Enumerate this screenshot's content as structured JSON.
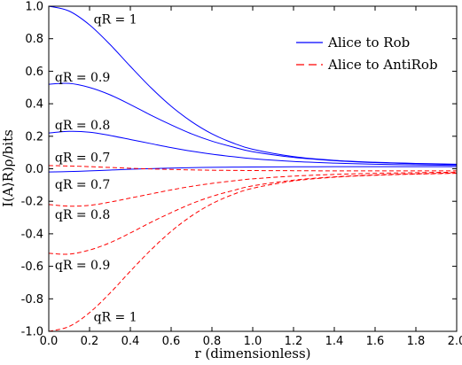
{
  "chart_data": {
    "type": "line",
    "xlabel": "r (dimensionless)",
    "ylabel": "I(A⟩R)ρ/bits",
    "xlim": [
      0,
      2
    ],
    "ylim": [
      -1,
      1
    ],
    "x_ticks": [
      "0.0",
      "0.2",
      "0.4",
      "0.6",
      "0.8",
      "1.0",
      "1.2",
      "1.4",
      "1.6",
      "1.8",
      "2.0"
    ],
    "y_ticks": [
      "1.0",
      "0.8",
      "0.6",
      "0.4",
      "0.2",
      "0.0",
      "-0.2",
      "-0.4",
      "-0.6",
      "-0.8",
      "-1.0"
    ],
    "grid": false,
    "legend_position": "top-right",
    "legend": [
      {
        "label": "Alice to Rob",
        "color": "#0000ff",
        "style": "solid"
      },
      {
        "label": "Alice to AntiRob",
        "color": "#ff0000",
        "style": "dashed"
      }
    ],
    "series": [
      {
        "group": "Alice to Rob",
        "annotation": "qR = 1",
        "color": "#0000ff",
        "style": "solid",
        "points": [
          [
            0,
            1.0
          ],
          [
            0.1,
            0.97
          ],
          [
            0.2,
            0.885
          ],
          [
            0.3,
            0.765
          ],
          [
            0.4,
            0.63
          ],
          [
            0.5,
            0.5
          ],
          [
            0.6,
            0.385
          ],
          [
            0.7,
            0.29
          ],
          [
            0.8,
            0.215
          ],
          [
            0.9,
            0.16
          ],
          [
            1.0,
            0.12
          ],
          [
            1.2,
            0.075
          ],
          [
            1.4,
            0.052
          ],
          [
            1.6,
            0.04
          ],
          [
            1.8,
            0.033
          ],
          [
            2.0,
            0.028
          ]
        ]
      },
      {
        "group": "Alice to Rob",
        "annotation": "qR = 0.9",
        "color": "#0000ff",
        "style": "solid",
        "points": [
          [
            0,
            0.52
          ],
          [
            0.1,
            0.525
          ],
          [
            0.2,
            0.5
          ],
          [
            0.3,
            0.455
          ],
          [
            0.4,
            0.395
          ],
          [
            0.5,
            0.33
          ],
          [
            0.6,
            0.27
          ],
          [
            0.7,
            0.215
          ],
          [
            0.8,
            0.17
          ],
          [
            0.9,
            0.135
          ],
          [
            1.0,
            0.105
          ],
          [
            1.2,
            0.07
          ],
          [
            1.4,
            0.05
          ],
          [
            1.6,
            0.038
          ],
          [
            1.8,
            0.031
          ],
          [
            2.0,
            0.026
          ]
        ]
      },
      {
        "group": "Alice to Rob",
        "annotation": "qR = 0.8",
        "color": "#0000ff",
        "style": "solid",
        "points": [
          [
            0,
            0.22
          ],
          [
            0.1,
            0.23
          ],
          [
            0.2,
            0.225
          ],
          [
            0.3,
            0.205
          ],
          [
            0.4,
            0.18
          ],
          [
            0.5,
            0.155
          ],
          [
            0.6,
            0.13
          ],
          [
            0.7,
            0.108
          ],
          [
            0.8,
            0.09
          ],
          [
            0.9,
            0.075
          ],
          [
            1.0,
            0.062
          ],
          [
            1.2,
            0.045
          ],
          [
            1.4,
            0.035
          ],
          [
            1.6,
            0.028
          ],
          [
            1.8,
            0.024
          ],
          [
            2.0,
            0.021
          ]
        ]
      },
      {
        "group": "Alice to Rob",
        "annotation": "qR = 0.7",
        "color": "#0000ff",
        "style": "solid",
        "points": [
          [
            0,
            -0.02
          ],
          [
            0.1,
            -0.017
          ],
          [
            0.2,
            -0.013
          ],
          [
            0.3,
            -0.008
          ],
          [
            0.4,
            -0.003
          ],
          [
            0.5,
            0.001
          ],
          [
            0.6,
            0.004
          ],
          [
            0.7,
            0.007
          ],
          [
            0.8,
            0.009
          ],
          [
            0.9,
            0.01
          ],
          [
            1.0,
            0.011
          ],
          [
            1.2,
            0.012
          ],
          [
            1.4,
            0.013
          ],
          [
            1.6,
            0.013
          ],
          [
            1.8,
            0.013
          ],
          [
            2.0,
            0.013
          ]
        ]
      },
      {
        "group": "Alice to AntiRob",
        "annotation": "qR = 0.7",
        "color": "#ff0000",
        "style": "dashed",
        "points": [
          [
            0,
            0.02
          ],
          [
            0.1,
            0.017
          ],
          [
            0.2,
            0.013
          ],
          [
            0.3,
            0.008
          ],
          [
            0.4,
            0.003
          ],
          [
            0.5,
            -0.001
          ],
          [
            0.6,
            -0.004
          ],
          [
            0.7,
            -0.007
          ],
          [
            0.8,
            -0.009
          ],
          [
            0.9,
            -0.01
          ],
          [
            1.0,
            -0.011
          ],
          [
            1.2,
            -0.012
          ],
          [
            1.4,
            -0.013
          ],
          [
            1.6,
            -0.013
          ],
          [
            1.8,
            -0.013
          ],
          [
            2.0,
            -0.013
          ]
        ]
      },
      {
        "group": "Alice to AntiRob",
        "annotation": "qR = 0.8",
        "color": "#ff0000",
        "style": "dashed",
        "points": [
          [
            0,
            -0.22
          ],
          [
            0.1,
            -0.23
          ],
          [
            0.2,
            -0.225
          ],
          [
            0.3,
            -0.205
          ],
          [
            0.4,
            -0.18
          ],
          [
            0.5,
            -0.155
          ],
          [
            0.6,
            -0.13
          ],
          [
            0.7,
            -0.108
          ],
          [
            0.8,
            -0.09
          ],
          [
            0.9,
            -0.075
          ],
          [
            1.0,
            -0.062
          ],
          [
            1.2,
            -0.045
          ],
          [
            1.4,
            -0.035
          ],
          [
            1.6,
            -0.028
          ],
          [
            1.8,
            -0.024
          ],
          [
            2.0,
            -0.021
          ]
        ]
      },
      {
        "group": "Alice to AntiRob",
        "annotation": "qR = 0.9",
        "color": "#ff0000",
        "style": "dashed",
        "points": [
          [
            0,
            -0.52
          ],
          [
            0.1,
            -0.525
          ],
          [
            0.2,
            -0.5
          ],
          [
            0.3,
            -0.455
          ],
          [
            0.4,
            -0.395
          ],
          [
            0.5,
            -0.33
          ],
          [
            0.6,
            -0.27
          ],
          [
            0.7,
            -0.215
          ],
          [
            0.8,
            -0.17
          ],
          [
            0.9,
            -0.135
          ],
          [
            1.0,
            -0.105
          ],
          [
            1.2,
            -0.07
          ],
          [
            1.4,
            -0.05
          ],
          [
            1.6,
            -0.038
          ],
          [
            1.8,
            -0.031
          ],
          [
            2.0,
            -0.026
          ]
        ]
      },
      {
        "group": "Alice to AntiRob",
        "annotation": "qR = 1",
        "color": "#ff0000",
        "style": "dashed",
        "points": [
          [
            0,
            -1.0
          ],
          [
            0.1,
            -0.97
          ],
          [
            0.2,
            -0.885
          ],
          [
            0.3,
            -0.765
          ],
          [
            0.4,
            -0.63
          ],
          [
            0.5,
            -0.5
          ],
          [
            0.6,
            -0.385
          ],
          [
            0.7,
            -0.29
          ],
          [
            0.8,
            -0.215
          ],
          [
            0.9,
            -0.16
          ],
          [
            1.0,
            -0.12
          ],
          [
            1.2,
            -0.075
          ],
          [
            1.4,
            -0.052
          ],
          [
            1.6,
            -0.04
          ],
          [
            1.8,
            -0.033
          ],
          [
            2.0,
            -0.028
          ]
        ]
      }
    ],
    "annotations": [
      {
        "text": "qR = 1",
        "x": 0.22,
        "y": 0.92
      },
      {
        "text": "qR = 0.9",
        "x": 0.03,
        "y": 0.565
      },
      {
        "text": "qR = 0.8",
        "x": 0.03,
        "y": 0.27
      },
      {
        "text": "qR = 0.7",
        "x": 0.03,
        "y": 0.07
      },
      {
        "text": "qR = 0.7",
        "x": 0.03,
        "y": -0.095
      },
      {
        "text": "qR = 0.8",
        "x": 0.03,
        "y": -0.28
      },
      {
        "text": "qR = 0.9",
        "x": 0.03,
        "y": -0.59
      },
      {
        "text": "qR = 1",
        "x": 0.22,
        "y": -0.91
      }
    ]
  }
}
